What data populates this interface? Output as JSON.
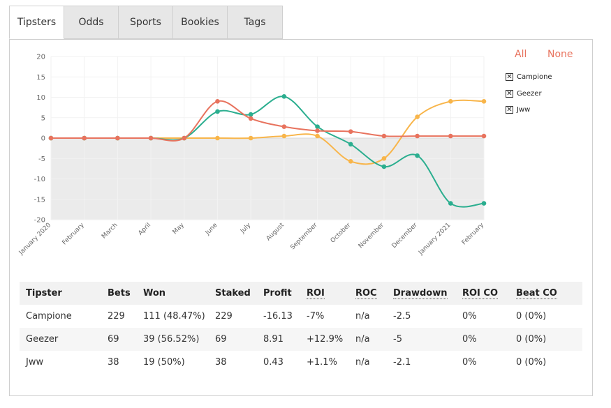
{
  "tabs": [
    {
      "label": "Tipsters",
      "active": true
    },
    {
      "label": "Odds",
      "active": false
    },
    {
      "label": "Sports",
      "active": false
    },
    {
      "label": "Bookies",
      "active": false
    },
    {
      "label": "Tags",
      "active": false
    }
  ],
  "legend_controls": {
    "all": "All",
    "none": "None"
  },
  "chart_data": {
    "type": "line",
    "x": [
      "January 2020",
      "February",
      "March",
      "April",
      "May",
      "June",
      "July",
      "August",
      "September",
      "October",
      "November",
      "December",
      "January 2021",
      "February"
    ],
    "ylim": [
      -20,
      20
    ],
    "yticks": [
      20,
      15,
      10,
      5,
      0,
      -5,
      -10,
      -15,
      -20
    ],
    "grid": true,
    "legend_position": "right",
    "series": [
      {
        "name": "Campione",
        "color": "#e8735e",
        "values": [
          0,
          0,
          0,
          0,
          0,
          9,
          4.8,
          2.8,
          1.8,
          1.6,
          0.5,
          0.5,
          0.5,
          0.5
        ]
      },
      {
        "name": "Geezer",
        "color": "#2bae8f",
        "values": [
          0,
          0,
          0,
          0,
          0,
          6.5,
          5.8,
          10.2,
          2.8,
          -1.5,
          -7,
          -4.3,
          -16,
          -16
        ]
      },
      {
        "name": "Jww",
        "color": "#f8b54a",
        "values": [
          0,
          0,
          0,
          0,
          0,
          0,
          0,
          0.5,
          0.5,
          -5.7,
          -5,
          5.2,
          9,
          9
        ]
      }
    ]
  },
  "table": {
    "headers": [
      "Tipster",
      "Bets",
      "Won",
      "Staked",
      "Profit",
      "ROI",
      "ROC",
      "Drawdown",
      "ROI CO",
      "Beat CO"
    ],
    "rows": [
      [
        "Campione",
        "229",
        "111 (48.47%)",
        "229",
        "-16.13",
        "-7%",
        "n/a",
        "-2.5",
        "0%",
        "0 (0%)"
      ],
      [
        "Geezer",
        "69",
        "39 (56.52%)",
        "69",
        "8.91",
        "+12.9%",
        "n/a",
        "-5",
        "0%",
        "0 (0%)"
      ],
      [
        "Jww",
        "38",
        "19 (50%)",
        "38",
        "0.43",
        "+1.1%",
        "n/a",
        "-2.1",
        "0%",
        "0 (0%)"
      ]
    ]
  }
}
